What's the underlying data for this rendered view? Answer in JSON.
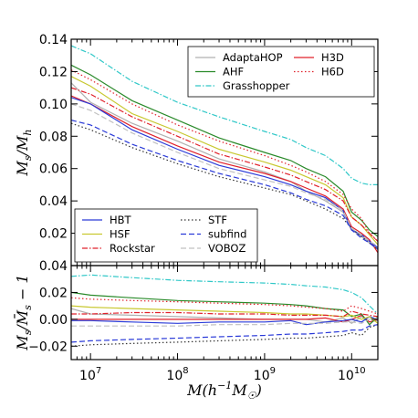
{
  "chart_data": [
    {
      "type": "line",
      "panel": "top",
      "ylabel": "M_s/M_h",
      "xscale": "log",
      "xlim": [
        6000000,
        20000000000
      ],
      "ylim": [
        0.0,
        0.14
      ],
      "yticks": [
        "0.02",
        "0.04",
        "0.06",
        "0.08",
        "0.10",
        "0.12",
        "0.14"
      ],
      "yticks_values": [
        0.02,
        0.04,
        0.06,
        0.08,
        0.1,
        0.12,
        0.14
      ],
      "legends": [
        {
          "placement": "top-right",
          "entries": [
            "AdaptaHOP",
            "H3D",
            "AHF",
            "H6D",
            "Grasshopper"
          ]
        },
        {
          "placement": "bottom-left",
          "entries": [
            "HBT",
            "STF",
            "HSF",
            "subfind",
            "Rockstar",
            "VOBOZ"
          ]
        }
      ],
      "series": [
        {
          "name": "AdaptaHOP",
          "color": "#b0b0b0",
          "dash": "solid",
          "x": [
            6000000.0,
            10000000.0,
            30000000.0,
            100000000.0,
            300000000.0,
            1000000000.0,
            2000000000.0,
            3000000000.0,
            5000000000.0,
            8000000000.0,
            10000000000.0,
            13000000000.0,
            16000000000.0,
            20000000000.0
          ],
          "y": [
            0.113,
            0.101,
            0.088,
            0.077,
            0.066,
            0.058,
            0.052,
            0.046,
            0.04,
            0.033,
            0.022,
            0.018,
            0.014,
            0.01
          ]
        },
        {
          "name": "H3D",
          "color": "#e0202a",
          "dash": "solid",
          "x": [
            6000000.0,
            10000000.0,
            30000000.0,
            100000000.0,
            300000000.0,
            1000000000.0,
            2000000000.0,
            3000000000.0,
            5000000000.0,
            8000000000.0,
            10000000000.0,
            13000000000.0,
            16000000000.0,
            20000000000.0
          ],
          "y": [
            0.105,
            0.1,
            0.086,
            0.074,
            0.064,
            0.057,
            0.052,
            0.048,
            0.043,
            0.035,
            0.024,
            0.02,
            0.016,
            0.008
          ]
        },
        {
          "name": "AHF",
          "color": "#2a8a2a",
          "dash": "solid",
          "x": [
            6000000.0,
            10000000.0,
            30000000.0,
            100000000.0,
            300000000.0,
            1000000000.0,
            2000000000.0,
            3000000000.0,
            5000000000.0,
            8000000000.0,
            10000000000.0,
            13000000000.0,
            16000000000.0,
            20000000000.0
          ],
          "y": [
            0.124,
            0.118,
            0.102,
            0.09,
            0.079,
            0.07,
            0.065,
            0.06,
            0.055,
            0.046,
            0.033,
            0.028,
            0.022,
            0.018
          ]
        },
        {
          "name": "H6D",
          "color": "#e0202a",
          "dash": "dotted",
          "x": [
            6000000.0,
            10000000.0,
            30000000.0,
            100000000.0,
            300000000.0,
            1000000000.0,
            2000000000.0,
            3000000000.0,
            5000000000.0,
            8000000000.0,
            10000000000.0,
            13000000000.0,
            16000000000.0,
            20000000000.0
          ],
          "y": [
            0.121,
            0.115,
            0.1,
            0.087,
            0.077,
            0.068,
            0.062,
            0.058,
            0.052,
            0.044,
            0.035,
            0.029,
            0.02,
            0.015
          ]
        },
        {
          "name": "Grasshopper",
          "color": "#30c8c8",
          "dash": "dashdot",
          "x": [
            6000000.0,
            10000000.0,
            30000000.0,
            100000000.0,
            300000000.0,
            1000000000.0,
            2000000000.0,
            3000000000.0,
            5000000000.0,
            8000000000.0,
            10000000000.0,
            13000000000.0,
            16000000000.0,
            20000000000.0
          ],
          "y": [
            0.136,
            0.131,
            0.114,
            0.101,
            0.092,
            0.083,
            0.078,
            0.073,
            0.068,
            0.06,
            0.054,
            0.051,
            0.05,
            0.05
          ]
        },
        {
          "name": "HBT",
          "color": "#2a3ad8",
          "dash": "solid",
          "x": [
            6000000.0,
            10000000.0,
            30000000.0,
            100000000.0,
            300000000.0,
            1000000000.0,
            2000000000.0,
            3000000000.0,
            5000000000.0,
            8000000000.0,
            10000000000.0,
            13000000000.0,
            16000000000.0,
            20000000000.0
          ],
          "y": [
            0.104,
            0.1,
            0.084,
            0.072,
            0.062,
            0.055,
            0.05,
            0.046,
            0.042,
            0.034,
            0.022,
            0.019,
            0.015,
            0.011
          ]
        },
        {
          "name": "STF",
          "color": "#333333",
          "dash": "dotted",
          "x": [
            6000000.0,
            10000000.0,
            30000000.0,
            100000000.0,
            300000000.0,
            1000000000.0,
            2000000000.0,
            3000000000.0,
            5000000000.0,
            8000000000.0,
            10000000000.0,
            13000000000.0,
            16000000000.0,
            20000000000.0
          ],
          "y": [
            0.088,
            0.084,
            0.073,
            0.063,
            0.055,
            0.048,
            0.044,
            0.04,
            0.035,
            0.029,
            0.023,
            0.018,
            0.014,
            0.01
          ]
        },
        {
          "name": "HSF",
          "color": "#c8c830",
          "dash": "solid",
          "x": [
            6000000.0,
            10000000.0,
            30000000.0,
            100000000.0,
            300000000.0,
            1000000000.0,
            2000000000.0,
            3000000000.0,
            5000000000.0,
            8000000000.0,
            10000000000.0,
            13000000000.0,
            16000000000.0,
            20000000000.0
          ],
          "y": [
            0.117,
            0.111,
            0.094,
            0.083,
            0.072,
            0.064,
            0.059,
            0.055,
            0.05,
            0.042,
            0.03,
            0.025,
            0.019,
            0.013
          ]
        },
        {
          "name": "subfind",
          "color": "#2a3ad8",
          "dash": "dashed",
          "x": [
            6000000.0,
            10000000.0,
            30000000.0,
            100000000.0,
            300000000.0,
            1000000000.0,
            2000000000.0,
            3000000000.0,
            5000000000.0,
            8000000000.0,
            10000000000.0,
            13000000000.0,
            16000000000.0,
            20000000000.0
          ],
          "y": [
            0.09,
            0.087,
            0.075,
            0.065,
            0.057,
            0.05,
            0.045,
            0.041,
            0.037,
            0.031,
            0.022,
            0.017,
            0.014,
            0.01
          ]
        },
        {
          "name": "Rockstar",
          "color": "#e0202a",
          "dash": "dashdot",
          "x": [
            6000000.0,
            10000000.0,
            30000000.0,
            100000000.0,
            300000000.0,
            1000000000.0,
            2000000000.0,
            3000000000.0,
            5000000000.0,
            8000000000.0,
            10000000000.0,
            13000000000.0,
            16000000000.0,
            20000000000.0
          ],
          "y": [
            0.11,
            0.106,
            0.092,
            0.08,
            0.069,
            0.061,
            0.056,
            0.052,
            0.047,
            0.04,
            0.03,
            0.025,
            0.02,
            0.015
          ]
        },
        {
          "name": "VOBOZ",
          "color": "#c0c0c0",
          "dash": "dashed",
          "x": [
            6000000.0,
            10000000.0,
            30000000.0,
            100000000.0,
            300000000.0,
            1000000000.0,
            2000000000.0,
            3000000000.0,
            5000000000.0,
            8000000000.0,
            10000000000.0,
            13000000000.0,
            16000000000.0,
            20000000000.0
          ],
          "y": [
            0.1,
            0.096,
            0.082,
            0.07,
            0.06,
            0.053,
            0.049,
            0.045,
            0.041,
            0.034,
            0.023,
            0.019,
            0.015,
            0.012
          ]
        }
      ]
    },
    {
      "type": "line",
      "panel": "bottom",
      "xlabel": "M(h^{-1}M_☉)",
      "ylabel": "M_s/M̄_s − 1",
      "xscale": "log",
      "xlim": [
        6000000,
        20000000000
      ],
      "ylim": [
        -0.03,
        0.04
      ],
      "xticks": [
        [
          "10",
          "7"
        ],
        [
          "10",
          "8"
        ],
        [
          "10",
          "9"
        ],
        [
          "10",
          "10"
        ]
      ],
      "xticks_values": [
        10000000,
        100000000,
        1000000000,
        10000000000
      ],
      "yticks": [
        "−0.02",
        "0.00",
        "0.02",
        "0.04"
      ],
      "yticks_values": [
        -0.02,
        0.0,
        0.02,
        0.04
      ],
      "series": [
        {
          "name": "AdaptaHOP",
          "color": "#b0b0b0",
          "dash": "solid",
          "x": [
            6000000.0,
            10000000.0,
            30000000.0,
            100000000.0,
            300000000.0,
            1000000000.0,
            2000000000.0,
            3000000000.0,
            5000000000.0,
            8000000000.0,
            10000000000.0,
            13000000000.0,
            16000000000.0,
            20000000000.0
          ],
          "y": [
            0.008,
            0.004,
            0.003,
            0.002,
            0.001,
            0.0,
            0.0,
            0.0,
            -0.002,
            0.001,
            -0.003,
            0.002,
            -0.002,
            -0.001
          ]
        },
        {
          "name": "H3D",
          "color": "#e0202a",
          "dash": "solid",
          "x": [
            6000000.0,
            10000000.0,
            30000000.0,
            100000000.0,
            300000000.0,
            1000000000.0,
            2000000000.0,
            3000000000.0,
            5000000000.0,
            8000000000.0,
            10000000000.0,
            13000000000.0,
            16000000000.0,
            20000000000.0
          ],
          "y": [
            0.0,
            0.0,
            0.0,
            0.0,
            0.0,
            0.0,
            0.0,
            0.0,
            0.001,
            -0.002,
            0.0,
            0.003,
            -0.002,
            0.0
          ]
        },
        {
          "name": "AHF",
          "color": "#2a8a2a",
          "dash": "solid",
          "x": [
            6000000.0,
            10000000.0,
            30000000.0,
            100000000.0,
            300000000.0,
            1000000000.0,
            2000000000.0,
            3000000000.0,
            5000000000.0,
            8000000000.0,
            10000000000.0,
            13000000000.0,
            16000000000.0,
            20000000000.0
          ],
          "y": [
            0.02,
            0.018,
            0.016,
            0.014,
            0.013,
            0.012,
            0.011,
            0.01,
            0.008,
            0.007,
            0.002,
            0.004,
            -0.004,
            0.002
          ]
        },
        {
          "name": "H6D",
          "color": "#e0202a",
          "dash": "dotted",
          "x": [
            6000000.0,
            10000000.0,
            30000000.0,
            100000000.0,
            300000000.0,
            1000000000.0,
            2000000000.0,
            3000000000.0,
            5000000000.0,
            8000000000.0,
            10000000000.0,
            13000000000.0,
            16000000000.0,
            20000000000.0
          ],
          "y": [
            0.016,
            0.015,
            0.014,
            0.013,
            0.012,
            0.011,
            0.01,
            0.009,
            0.008,
            0.006,
            0.01,
            0.008,
            0.006,
            0.004
          ]
        },
        {
          "name": "Grasshopper",
          "color": "#30c8c8",
          "dash": "dashdot",
          "x": [
            6000000.0,
            10000000.0,
            30000000.0,
            100000000.0,
            300000000.0,
            1000000000.0,
            2000000000.0,
            3000000000.0,
            5000000000.0,
            8000000000.0,
            10000000000.0,
            13000000000.0,
            16000000000.0,
            20000000000.0
          ],
          "y": [
            0.032,
            0.033,
            0.031,
            0.029,
            0.028,
            0.027,
            0.026,
            0.025,
            0.024,
            0.022,
            0.02,
            0.016,
            0.01,
            0.004
          ]
        },
        {
          "name": "HBT",
          "color": "#2a3ad8",
          "dash": "solid",
          "x": [
            6000000.0,
            10000000.0,
            30000000.0,
            100000000.0,
            300000000.0,
            1000000000.0,
            2000000000.0,
            3000000000.0,
            5000000000.0,
            8000000000.0,
            10000000000.0,
            13000000000.0,
            16000000000.0,
            20000000000.0
          ],
          "y": [
            -0.001,
            -0.001,
            -0.002,
            -0.003,
            -0.002,
            -0.002,
            -0.001,
            -0.004,
            -0.002,
            -0.001,
            0.0,
            -0.002,
            0.002,
            0.0
          ]
        },
        {
          "name": "STF",
          "color": "#333333",
          "dash": "dotted",
          "x": [
            6000000.0,
            10000000.0,
            30000000.0,
            100000000.0,
            300000000.0,
            1000000000.0,
            2000000000.0,
            3000000000.0,
            5000000000.0,
            8000000000.0,
            10000000000.0,
            13000000000.0,
            16000000000.0,
            20000000000.0
          ],
          "y": [
            -0.02,
            -0.019,
            -0.018,
            -0.017,
            -0.016,
            -0.015,
            -0.014,
            -0.014,
            -0.013,
            -0.012,
            -0.01,
            -0.012,
            -0.006,
            -0.004
          ]
        },
        {
          "name": "HSF",
          "color": "#c8c830",
          "dash": "solid",
          "x": [
            6000000.0,
            10000000.0,
            30000000.0,
            100000000.0,
            300000000.0,
            1000000000.0,
            2000000000.0,
            3000000000.0,
            5000000000.0,
            8000000000.0,
            10000000000.0,
            13000000000.0,
            16000000000.0,
            20000000000.0
          ],
          "y": [
            0.01,
            0.009,
            0.008,
            0.007,
            0.006,
            0.005,
            0.004,
            0.004,
            0.003,
            0.002,
            0.003,
            0.0,
            0.002,
            -0.003
          ]
        },
        {
          "name": "subfind",
          "color": "#2a3ad8",
          "dash": "dashed",
          "x": [
            6000000.0,
            10000000.0,
            30000000.0,
            100000000.0,
            300000000.0,
            1000000000.0,
            2000000000.0,
            3000000000.0,
            5000000000.0,
            8000000000.0,
            10000000000.0,
            13000000000.0,
            16000000000.0,
            20000000000.0
          ],
          "y": [
            -0.017,
            -0.016,
            -0.015,
            -0.014,
            -0.013,
            -0.012,
            -0.011,
            -0.011,
            -0.01,
            -0.009,
            -0.008,
            -0.008,
            -0.005,
            -0.004
          ]
        },
        {
          "name": "Rockstar",
          "color": "#e0202a",
          "dash": "dashdot",
          "x": [
            6000000.0,
            10000000.0,
            30000000.0,
            100000000.0,
            300000000.0,
            1000000000.0,
            2000000000.0,
            3000000000.0,
            5000000000.0,
            8000000000.0,
            10000000000.0,
            13000000000.0,
            16000000000.0,
            20000000000.0
          ],
          "y": [
            0.004,
            0.004,
            0.005,
            0.005,
            0.004,
            0.004,
            0.003,
            0.003,
            0.003,
            0.002,
            0.006,
            0.004,
            0.003,
            0.002
          ]
        },
        {
          "name": "VOBOZ",
          "color": "#c0c0c0",
          "dash": "dashed",
          "x": [
            6000000.0,
            10000000.0,
            30000000.0,
            100000000.0,
            300000000.0,
            1000000000.0,
            2000000000.0,
            3000000000.0,
            5000000000.0,
            8000000000.0,
            10000000000.0,
            13000000000.0,
            16000000000.0,
            20000000000.0
          ],
          "y": [
            -0.005,
            -0.005,
            -0.005,
            -0.005,
            -0.004,
            -0.004,
            -0.003,
            -0.003,
            -0.003,
            -0.002,
            -0.002,
            -0.003,
            0.0,
            0.001
          ]
        }
      ]
    }
  ]
}
